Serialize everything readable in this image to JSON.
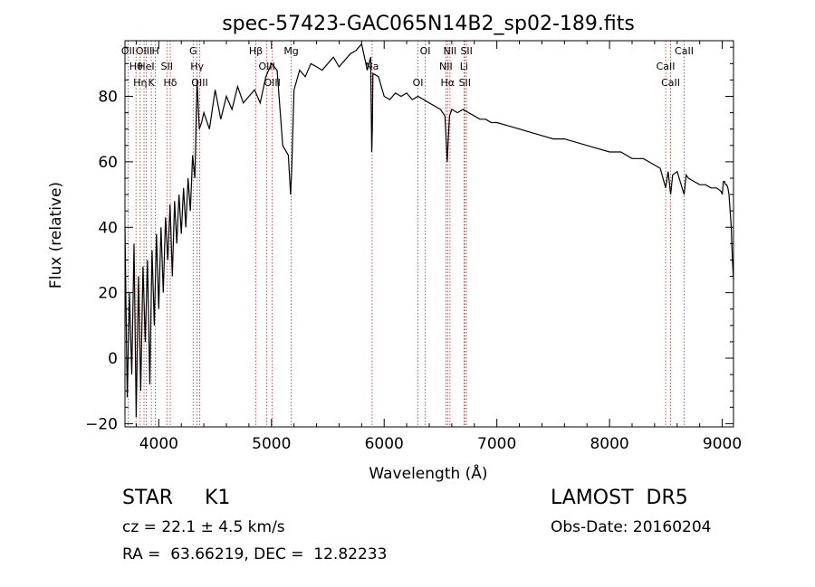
{
  "chart_data": {
    "type": "line",
    "title": "spec-57423-GAC065N14B2_sp02-189.fits",
    "xlabel": "Wavelength (Å)",
    "ylabel": "Flux (relative)",
    "xlim": [
      3700,
      9100
    ],
    "ylim": [
      -21,
      97
    ],
    "x_ticks": [
      4000,
      5000,
      6000,
      7000,
      8000,
      9000
    ],
    "y_ticks": [
      -20,
      0,
      20,
      40,
      60,
      80
    ],
    "series": [
      {
        "x": [
          3700,
          3720,
          3740,
          3760,
          3780,
          3800,
          3820,
          3840,
          3860,
          3880,
          3900,
          3920,
          3940,
          3960,
          3980,
          4000,
          4020,
          4040,
          4060,
          4080,
          4100,
          4120,
          4140,
          4160,
          4180,
          4200,
          4220,
          4240,
          4260,
          4280,
          4300,
          4320,
          4340,
          4360,
          4380,
          4400,
          4450,
          4500,
          4550,
          4600,
          4650,
          4700,
          4750,
          4800,
          4850,
          4900,
          4950,
          5000,
          5050,
          5100,
          5150,
          5170,
          5180,
          5200,
          5250,
          5300,
          5350,
          5400,
          5450,
          5500,
          5550,
          5600,
          5650,
          5700,
          5750,
          5800,
          5850,
          5880,
          5890,
          5895,
          5900,
          5950,
          6000,
          6050,
          6100,
          6150,
          6200,
          6250,
          6300,
          6350,
          6400,
          6450,
          6500,
          6540,
          6560,
          6570,
          6580,
          6600,
          6650,
          6700,
          6750,
          6800,
          6850,
          6900,
          6950,
          7000,
          7100,
          7200,
          7300,
          7400,
          7500,
          7600,
          7700,
          7800,
          7900,
          8000,
          8100,
          8200,
          8300,
          8400,
          8450,
          8498,
          8520,
          8542,
          8560,
          8600,
          8662,
          8680,
          8700,
          8750,
          8800,
          8850,
          8900,
          8950,
          8990,
          9000,
          9010,
          9020,
          9030,
          9040,
          9050,
          9060,
          9070,
          9080,
          9090,
          9100
        ],
        "y": [
          40,
          -12,
          20,
          -5,
          35,
          -18,
          25,
          -10,
          28,
          5,
          30,
          -8,
          33,
          10,
          38,
          15,
          40,
          20,
          43,
          30,
          47,
          25,
          48,
          35,
          50,
          38,
          52,
          40,
          55,
          45,
          62,
          55,
          85,
          70,
          72,
          75,
          70,
          82,
          73,
          80,
          76,
          83,
          78,
          80,
          82,
          78,
          86,
          90,
          88,
          65,
          62,
          50,
          58,
          82,
          88,
          86,
          90,
          89,
          88,
          90,
          92,
          89,
          91,
          93,
          94,
          96,
          88,
          92,
          63,
          70,
          87,
          86,
          80,
          79,
          81,
          80,
          81,
          79,
          80,
          79,
          78,
          77,
          76,
          74,
          60,
          68,
          74,
          76,
          75,
          76,
          75,
          74,
          73,
          73,
          72,
          72,
          71,
          70,
          69,
          68,
          67,
          67,
          66,
          65,
          64,
          63,
          63,
          61,
          61,
          59,
          58,
          52,
          57,
          50,
          56,
          57,
          50,
          56,
          55,
          54,
          53,
          53,
          52,
          52,
          51,
          50,
          54,
          54,
          53,
          53,
          52,
          50,
          45,
          40,
          30,
          24
        ]
      }
    ],
    "lines": [
      {
        "wavelength": 3727,
        "labels": [
          "OII"
        ]
      },
      {
        "wavelength": 3798,
        "labels": [
          "Hθ"
        ]
      },
      {
        "wavelength": 3835,
        "labels": [
          "Hη"
        ]
      },
      {
        "wavelength": 3869,
        "labels": [
          "OIII"
        ]
      },
      {
        "wavelength": 3889,
        "labels": [
          "HeI"
        ]
      },
      {
        "wavelength": 3934,
        "labels": [
          "K"
        ]
      },
      {
        "wavelength": 3970,
        "labels": [
          "H"
        ]
      },
      {
        "wavelength": 4072,
        "labels": [
          "SII"
        ]
      },
      {
        "wavelength": 4102,
        "labels": [
          "Hδ"
        ]
      },
      {
        "wavelength": 4305,
        "labels": [
          "G"
        ]
      },
      {
        "wavelength": 4340,
        "labels": [
          "Hγ"
        ]
      },
      {
        "wavelength": 4363,
        "labels": [
          "OIII"
        ]
      },
      {
        "wavelength": 4861,
        "labels": [
          "Hβ"
        ]
      },
      {
        "wavelength": 4959,
        "labels": [
          "OIII"
        ]
      },
      {
        "wavelength": 5007,
        "labels": [
          "OIII"
        ]
      },
      {
        "wavelength": 5175,
        "labels": [
          "Mg"
        ]
      },
      {
        "wavelength": 5893,
        "labels": [
          "Na"
        ]
      },
      {
        "wavelength": 6300,
        "labels": [
          "OI"
        ]
      },
      {
        "wavelength": 6364,
        "labels": [
          "OI"
        ]
      },
      {
        "wavelength": 6548,
        "labels": [
          "NII"
        ]
      },
      {
        "wavelength": 6563,
        "labels": [
          "Hα"
        ]
      },
      {
        "wavelength": 6584,
        "labels": [
          "NII"
        ]
      },
      {
        "wavelength": 6708,
        "labels": [
          "Li"
        ]
      },
      {
        "wavelength": 6716,
        "labels": [
          "SII"
        ]
      },
      {
        "wavelength": 6731,
        "labels": [
          "SII"
        ]
      },
      {
        "wavelength": 8498,
        "labels": [
          "CaII"
        ]
      },
      {
        "wavelength": 8542,
        "labels": [
          "CaII"
        ]
      },
      {
        "wavelength": 8662,
        "labels": [
          "CaII"
        ]
      }
    ]
  },
  "info": {
    "object_class": "STAR     K1",
    "cz": "cz = 22.1 ± 4.5 km/s",
    "radec": "RA =  63.66219, DEC =  12.82233",
    "survey": "LAMOST  DR5",
    "obs_date": "Obs-Date: 20160204"
  },
  "colors": {
    "spectrum": "#000000",
    "line_marker": "#b03030",
    "axis": "#000000"
  }
}
